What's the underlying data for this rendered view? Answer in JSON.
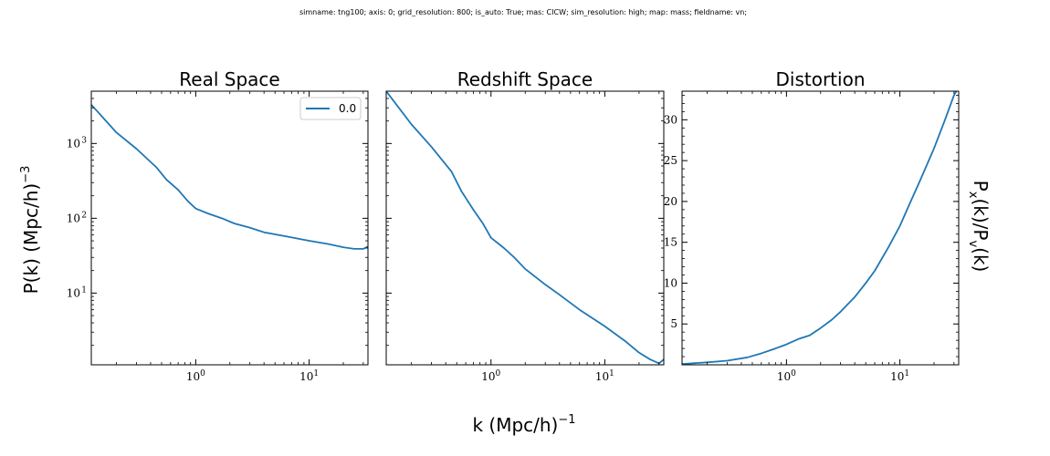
{
  "figure": {
    "suptitle": "simname: tng100; axis: 0; grid_resolution: 800; is_auto: True; mas: CICW; sim_resolution: high; map: mass; fieldname: vn;",
    "xlabel_base": "k (Mpc/h)",
    "xlabel_exp": "−1",
    "ylabel_left_base": "P(k) (Mpc/h)",
    "ylabel_left_exp": "−3",
    "ylabel_right": {
      "p1": "P",
      "sub1": "x",
      "p2": "(k)/P",
      "sub2": "v",
      "p3": "(k)"
    },
    "line_color": "#1f77b4"
  },
  "chart_data": [
    {
      "type": "line",
      "title": "Real Space",
      "xscale": "log",
      "yscale": "log",
      "xlim": [
        0.12,
        33
      ],
      "ylim": [
        1.1,
        5000
      ],
      "x_ticks": [
        {
          "value": 1,
          "label": "10",
          "exp": "0"
        },
        {
          "value": 10,
          "label": "10",
          "exp": "1"
        }
      ],
      "y_ticks": [
        {
          "value": 10,
          "label": "10",
          "exp": "1"
        },
        {
          "value": 100,
          "label": "10",
          "exp": "2"
        },
        {
          "value": 1000,
          "label": "10",
          "exp": "3"
        }
      ],
      "legend": {
        "entries": [
          "0.0"
        ],
        "placement": "top-right"
      },
      "series": [
        {
          "name": "0.0",
          "color": "#1f77b4",
          "points": [
            [
              0.12,
              3300
            ],
            [
              0.2,
              1400
            ],
            [
              0.3,
              850
            ],
            [
              0.45,
              480
            ],
            [
              0.55,
              330
            ],
            [
              0.7,
              240
            ],
            [
              0.85,
              170
            ],
            [
              1.0,
              135
            ],
            [
              1.3,
              115
            ],
            [
              1.7,
              100
            ],
            [
              2.2,
              85
            ],
            [
              3.0,
              75
            ],
            [
              4.0,
              65
            ],
            [
              6.0,
              58
            ],
            [
              10.0,
              50
            ],
            [
              15.0,
              45
            ],
            [
              20.0,
              41
            ],
            [
              25.0,
              39
            ],
            [
              30.0,
              39
            ],
            [
              33.0,
              42
            ]
          ]
        }
      ]
    },
    {
      "type": "line",
      "title": "Redshift Space",
      "xscale": "log",
      "yscale": "log",
      "xlim": [
        0.12,
        33
      ],
      "ylim": [
        1.1,
        5000
      ],
      "x_ticks": [
        {
          "value": 1,
          "label": "10",
          "exp": "0"
        },
        {
          "value": 10,
          "label": "10",
          "exp": "1"
        }
      ],
      "y_ticks": [
        {
          "value": 10,
          "label": "",
          "exp": ""
        },
        {
          "value": 100,
          "label": "",
          "exp": ""
        },
        {
          "value": 1000,
          "label": "",
          "exp": ""
        }
      ],
      "series": [
        {
          "name": "",
          "color": "#1f77b4",
          "points": [
            [
              0.12,
              5000
            ],
            [
              0.2,
              1800
            ],
            [
              0.3,
              900
            ],
            [
              0.45,
              420
            ],
            [
              0.55,
              230
            ],
            [
              0.7,
              130
            ],
            [
              0.85,
              85
            ],
            [
              1.0,
              55
            ],
            [
              1.3,
              40
            ],
            [
              1.6,
              30
            ],
            [
              2.0,
              21
            ],
            [
              3.0,
              13
            ],
            [
              4.0,
              9.5
            ],
            [
              6.0,
              6.0
            ],
            [
              10.0,
              3.6
            ],
            [
              15.0,
              2.3
            ],
            [
              20.0,
              1.6
            ],
            [
              25.0,
              1.3
            ],
            [
              30.0,
              1.15
            ],
            [
              33.0,
              1.3
            ]
          ]
        }
      ]
    },
    {
      "type": "line",
      "title": "Distortion",
      "xscale": "log",
      "yscale": "linear",
      "xlim": [
        0.12,
        33
      ],
      "ylim": [
        0.0,
        33.5
      ],
      "x_ticks": [
        {
          "value": 1,
          "label": "10",
          "exp": "0"
        },
        {
          "value": 10,
          "label": "10",
          "exp": "1"
        }
      ],
      "y_ticks": [
        {
          "value": 5,
          "label": "5"
        },
        {
          "value": 10,
          "label": "10"
        },
        {
          "value": 15,
          "label": "15"
        },
        {
          "value": 20,
          "label": "20"
        },
        {
          "value": 25,
          "label": "25"
        },
        {
          "value": 30,
          "label": "30"
        }
      ],
      "series": [
        {
          "name": "",
          "color": "#1f77b4",
          "points": [
            [
              0.12,
              0.1
            ],
            [
              0.2,
              0.3
            ],
            [
              0.3,
              0.5
            ],
            [
              0.45,
              0.9
            ],
            [
              0.6,
              1.4
            ],
            [
              0.8,
              2.0
            ],
            [
              1.0,
              2.5
            ],
            [
              1.3,
              3.2
            ],
            [
              1.6,
              3.6
            ],
            [
              2.0,
              4.5
            ],
            [
              2.5,
              5.5
            ],
            [
              3.0,
              6.5
            ],
            [
              4.0,
              8.3
            ],
            [
              5.0,
              10.0
            ],
            [
              6.0,
              11.5
            ],
            [
              8.0,
              14.5
            ],
            [
              10.0,
              17.0
            ],
            [
              12.0,
              19.5
            ],
            [
              15.0,
              22.5
            ],
            [
              20.0,
              26.5
            ],
            [
              25.0,
              30.0
            ],
            [
              30.0,
              33.0
            ],
            [
              33.0,
              34.0
            ]
          ]
        }
      ]
    }
  ]
}
